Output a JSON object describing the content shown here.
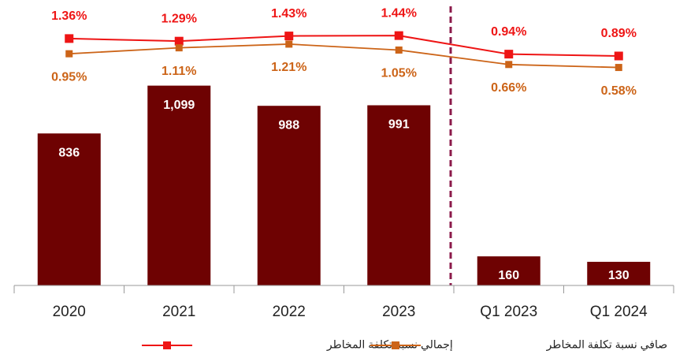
{
  "chart_data": {
    "type": "bar",
    "categories": [
      "2020",
      "2021",
      "2022",
      "2023",
      "Q1 2023",
      "Q1 2024"
    ],
    "values": [
      836,
      1099,
      988,
      991,
      160,
      130
    ],
    "value_labels": [
      "836",
      "1,099",
      "988",
      "991",
      "160",
      "130"
    ],
    "color": "#6e0202",
    "ylim": [
      0,
      1570
    ],
    "y2lim": [
      -5.3,
      2.4
    ],
    "series": [
      {
        "name": "إجمالي نسبة تكلفة المخاطر",
        "type": "line",
        "axis": "y2",
        "color": "#ee1515",
        "values": [
          1.36,
          1.29,
          1.43,
          1.44,
          0.94,
          0.89
        ],
        "value_labels": [
          "1.36%",
          "1.29%",
          "1.43%",
          "1.44%",
          "0.94%",
          "0.89%"
        ]
      },
      {
        "name": "صافي نسبة تكلفة المخاطر",
        "type": "line",
        "axis": "y2",
        "color": "#cc6418",
        "values": [
          0.95,
          1.11,
          1.21,
          1.05,
          0.66,
          0.58
        ],
        "value_labels": [
          "0.95%",
          "1.11%",
          "1.21%",
          "1.05%",
          "0.66%",
          "0.58%"
        ]
      }
    ]
  }
}
